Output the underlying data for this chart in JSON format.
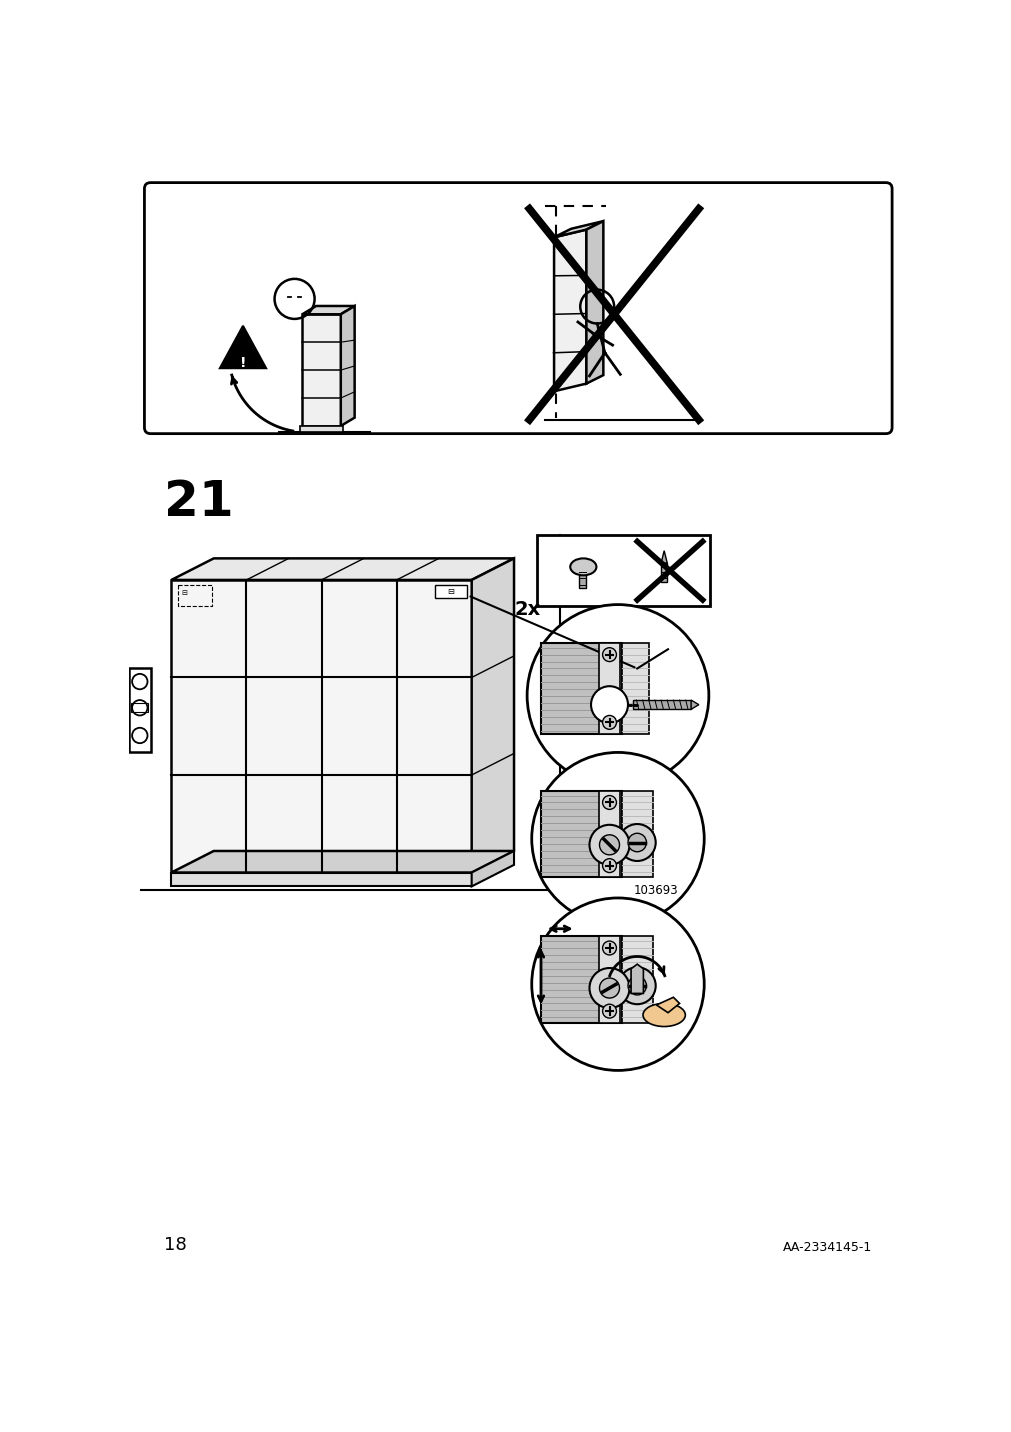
{
  "bg_color": "#ffffff",
  "page_number": "18",
  "article_number": "AA-2334145-1",
  "step_number": "21",
  "step_number_fontsize": 36,
  "page_num_fontsize": 13,
  "article_fontsize": 9,
  "fig_width": 10.12,
  "fig_height": 14.32,
  "dpi": 100
}
